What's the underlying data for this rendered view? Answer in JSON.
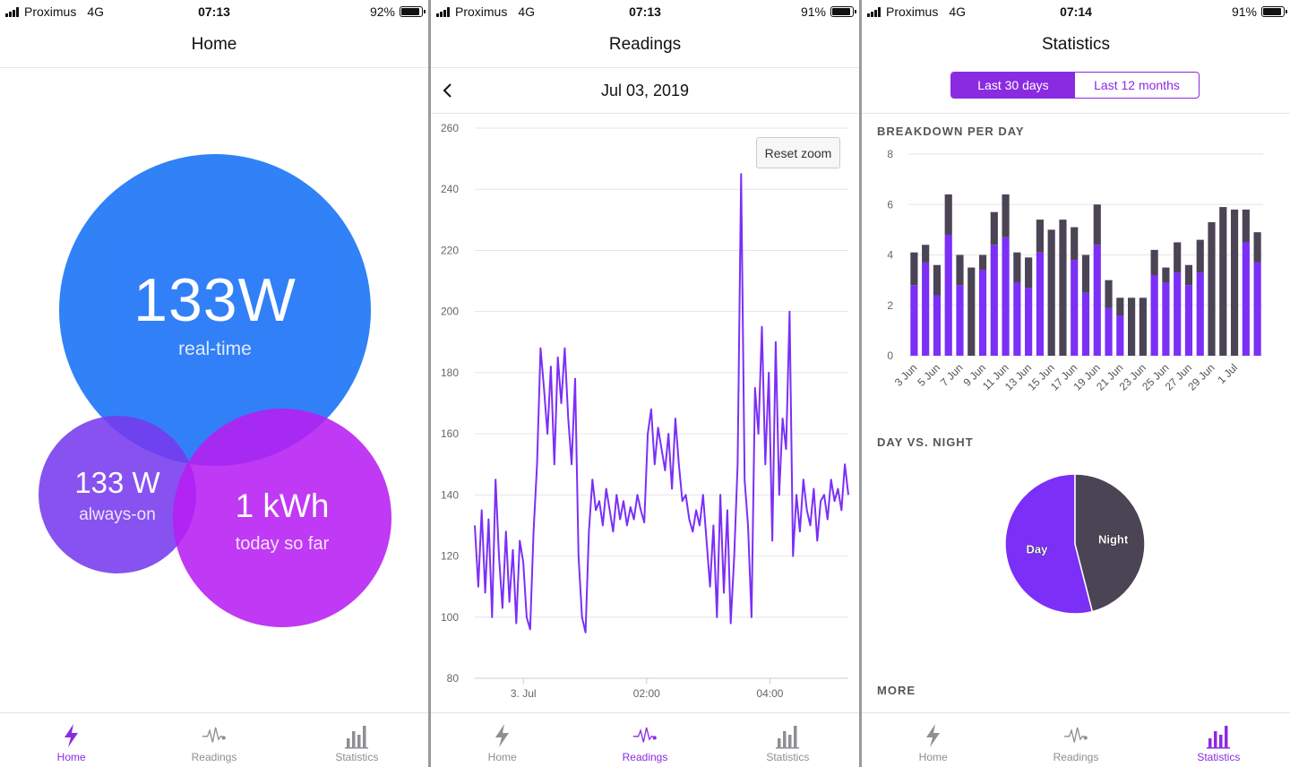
{
  "status_bars": [
    {
      "carrier": "Proximus",
      "network": "4G",
      "time": "07:13",
      "battery": "92%",
      "battery_level": 0.92
    },
    {
      "carrier": "Proximus",
      "network": "4G",
      "time": "07:13",
      "battery": "91%",
      "battery_level": 0.91
    },
    {
      "carrier": "Proximus",
      "network": "4G",
      "time": "07:14",
      "battery": "91%",
      "battery_level": 0.91
    }
  ],
  "tabs": [
    {
      "label": "Home",
      "icon": "lightning-icon"
    },
    {
      "label": "Readings",
      "icon": "pulse-icon"
    },
    {
      "label": "Statistics",
      "icon": "bar-chart-icon"
    }
  ],
  "home": {
    "title": "Home",
    "realtime_value": "133W",
    "realtime_label": "real-time",
    "always_on_value": "133 W",
    "always_on_label": "always-on",
    "today_value": "1 kWh",
    "today_label": "today so far",
    "colors": {
      "realtime": "#2f7ff7",
      "always_on": "#8040ef",
      "today": "#b523f2",
      "accent": "#8a2be2"
    }
  },
  "readings": {
    "title": "Readings",
    "date": "Jul 03, 2019",
    "back_icon": "chevron-left-icon",
    "reset_zoom": "Reset zoom",
    "chart_data": {
      "type": "line",
      "y_ticks": [
        80,
        100,
        120,
        140,
        160,
        180,
        200,
        220,
        240,
        260
      ],
      "ylim": [
        80,
        260
      ],
      "x_ticks": [
        "3. Jul",
        "02:00",
        "04:00"
      ],
      "x_tick_positions": [
        0.13,
        0.46,
        0.79
      ],
      "color": "#7b2ff7",
      "series": [
        {
          "values": [
            130,
            110,
            135,
            108,
            132,
            100,
            145,
            120,
            103,
            128,
            105,
            122,
            98,
            125,
            118,
            100,
            96,
            128,
            150,
            188,
            175,
            160,
            182,
            150,
            185,
            170,
            188,
            165,
            150,
            178,
            120,
            100,
            95,
            128,
            145,
            135,
            138,
            130,
            142,
            135,
            128,
            140,
            132,
            138,
            130,
            136,
            132,
            140,
            135,
            131,
            160,
            168,
            150,
            162,
            155,
            148,
            160,
            142,
            165,
            150,
            138,
            140,
            132,
            128,
            135,
            130,
            140,
            125,
            110,
            130,
            100,
            140,
            108,
            135,
            98,
            120,
            150,
            245,
            145,
            130,
            100,
            175,
            160,
            195,
            150,
            180,
            125,
            190,
            140,
            165,
            155,
            200,
            120,
            140,
            128,
            145,
            135,
            130,
            142,
            125,
            138,
            140,
            132,
            145,
            138,
            142,
            135,
            150,
            140
          ]
        }
      ]
    }
  },
  "statistics": {
    "title": "Statistics",
    "segments": [
      "Last 30 days",
      "Last 12 months"
    ],
    "breakdown_title": "BREAKDOWN PER DAY",
    "daynight_title": "DAY VS. NIGHT",
    "more_title": "MORE",
    "colors": {
      "day": "#7b2ff7",
      "night": "#4b4455"
    },
    "chart_data": [
      {
        "type": "bar",
        "stacked": true,
        "ylim": [
          0,
          8
        ],
        "y_ticks": [
          0,
          2,
          4,
          6,
          8
        ],
        "x_tick_labels": [
          "3 Jun",
          "5 Jun",
          "7 Jun",
          "9 Jun",
          "11 Jun",
          "13 Jun",
          "15 Jun",
          "17 Jun",
          "19 Jun",
          "21 Jun",
          "23 Jun",
          "25 Jun",
          "27 Jun",
          "29 Jun",
          "1 Jul"
        ],
        "series": [
          {
            "values": [
              2.8,
              3.7,
              2.4,
              4.8,
              2.8,
              0,
              3.4,
              4.4,
              4.7,
              2.9,
              2.7,
              4.1,
              0,
              0,
              3.8,
              2.5,
              4.4,
              1.9,
              1.6,
              0,
              0,
              3.2,
              2.9,
              3.3,
              2.8,
              3.3,
              0,
              0,
              0,
              4.5,
              3.7
            ]
          },
          {
            "values": [
              1.3,
              0.7,
              1.2,
              1.6,
              1.2,
              3.5,
              0.6,
              1.3,
              1.7,
              1.2,
              1.2,
              1.3,
              5.0,
              5.4,
              1.3,
              1.5,
              1.6,
              1.1,
              0.7,
              2.3,
              2.3,
              1.0,
              0.6,
              1.2,
              0.8,
              1.3,
              5.3,
              5.9,
              5.8,
              1.3,
              1.2
            ]
          }
        ]
      },
      {
        "type": "pie",
        "labels": [
          "Day",
          "Night"
        ],
        "values": [
          54,
          46
        ]
      }
    ]
  }
}
